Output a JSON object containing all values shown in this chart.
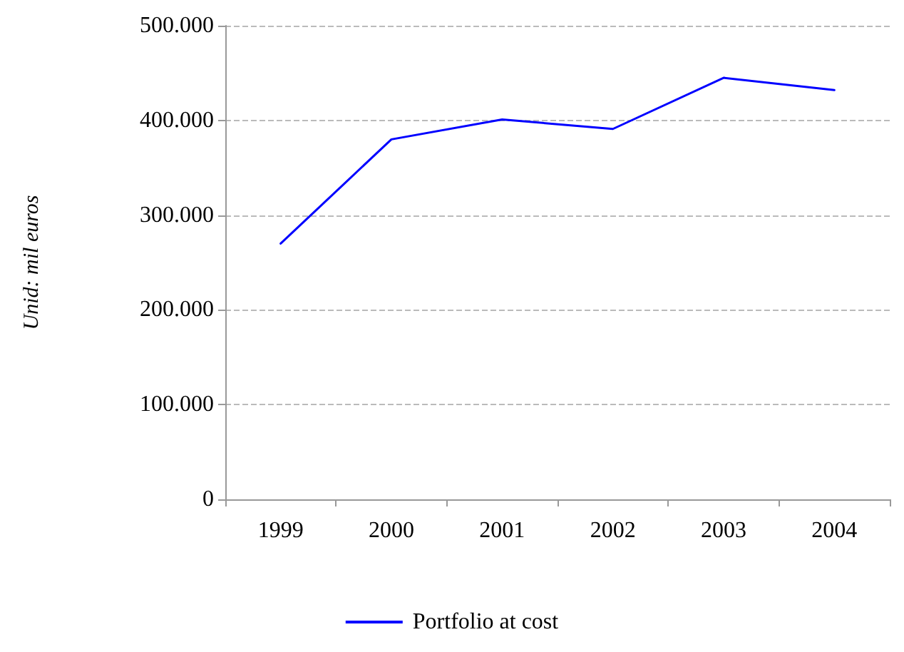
{
  "chart_data": {
    "type": "line",
    "ylabel": "Unid: mil euros",
    "categories": [
      "1999",
      "2000",
      "2001",
      "2002",
      "2003",
      "2004"
    ],
    "series": [
      {
        "name": "Portfolio at cost",
        "color": "#0000ff",
        "values": [
          270000,
          380000,
          401000,
          391000,
          445000,
          432000
        ]
      }
    ],
    "ylim": [
      0,
      500000
    ],
    "yticks": [
      {
        "value": 0,
        "label": "0"
      },
      {
        "value": 100000,
        "label": "100.000"
      },
      {
        "value": 200000,
        "label": "200.000"
      },
      {
        "value": 300000,
        "label": "300.000"
      },
      {
        "value": 400000,
        "label": "400.000"
      },
      {
        "value": 500000,
        "label": "500.000"
      }
    ],
    "grid": "y",
    "legend": "bottom",
    "marker": "none",
    "line_style": "solid"
  }
}
